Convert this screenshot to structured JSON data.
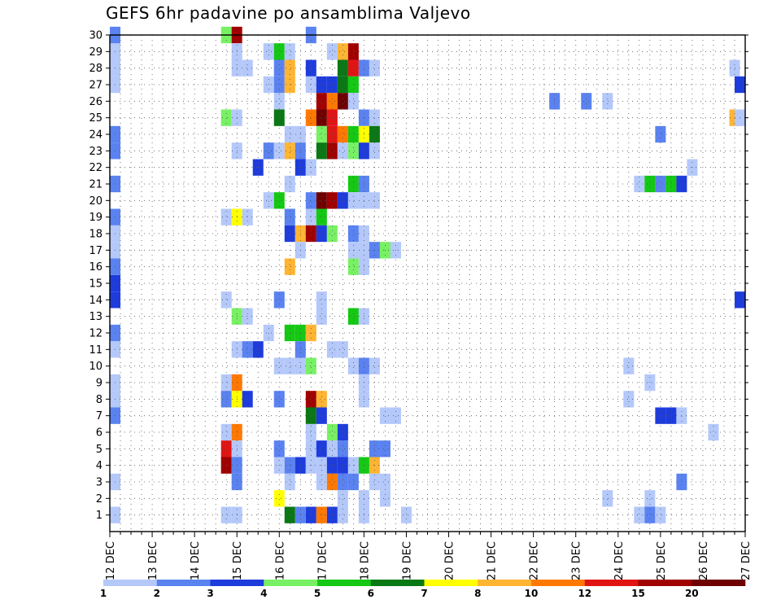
{
  "chart_data": {
    "type": "heatmap",
    "title": "GEFS 6hr padavine po ansamblima Valjevo",
    "xlabel": "",
    "ylabel": "",
    "x_ticks": [
      "12 DEC",
      "13 DEC",
      "14 DEC",
      "15 DEC",
      "16 DEC",
      "17 DEC",
      "18 DEC",
      "19 DEC",
      "20 DEC",
      "21 DEC",
      "22 DEC",
      "23 DEC",
      "24 DEC",
      "25 DEC",
      "26 DEC",
      "27 DEC"
    ],
    "xlim_days": [
      12,
      27
    ],
    "y_ticks": [
      1,
      2,
      3,
      4,
      5,
      6,
      7,
      8,
      9,
      10,
      11,
      12,
      13,
      14,
      15,
      16,
      17,
      18,
      19,
      20,
      21,
      22,
      23,
      24,
      25,
      26,
      27,
      28,
      29,
      30
    ],
    "ylim": [
      0,
      30
    ],
    "grid": true,
    "step_hours": 6,
    "colorbar": {
      "placement": "bottom",
      "colors": [
        "#b4c8fa",
        "#5a82f0",
        "#1e3cdc",
        "#78f064",
        "#14c814",
        "#0a7814",
        "#ffff00",
        "#ffb432",
        "#ff7800",
        "#e11414",
        "#a00000",
        "#6e0000"
      ],
      "tick_labels": [
        "1",
        "2",
        "3",
        "4",
        "5",
        "6",
        "7",
        "8",
        "10",
        "12",
        "15",
        "20"
      ]
    },
    "cells": [
      {
        "day": 12.0,
        "member": 1,
        "level": 1
      },
      {
        "day": 12.0,
        "member": 3,
        "level": 1
      },
      {
        "day": 12.0,
        "member": 7,
        "level": 2
      },
      {
        "day": 12.0,
        "member": 8,
        "level": 1
      },
      {
        "day": 12.0,
        "member": 9,
        "level": 1
      },
      {
        "day": 12.0,
        "member": 11,
        "level": 1
      },
      {
        "day": 12.0,
        "member": 12,
        "level": 2
      },
      {
        "day": 12.0,
        "member": 14,
        "level": 3
      },
      {
        "day": 12.0,
        "member": 15,
        "level": 3
      },
      {
        "day": 12.0,
        "member": 16,
        "level": 2
      },
      {
        "day": 12.0,
        "member": 17,
        "level": 1
      },
      {
        "day": 12.0,
        "member": 18,
        "level": 1
      },
      {
        "day": 12.0,
        "member": 19,
        "level": 2
      },
      {
        "day": 12.0,
        "member": 21,
        "level": 2
      },
      {
        "day": 12.0,
        "member": 23,
        "level": 2
      },
      {
        "day": 12.0,
        "member": 24,
        "level": 2
      },
      {
        "day": 12.0,
        "member": 27,
        "level": 1
      },
      {
        "day": 12.0,
        "member": 28,
        "level": 1
      },
      {
        "day": 12.0,
        "member": 29,
        "level": 1
      },
      {
        "day": 12.0,
        "member": 30,
        "level": 2
      },
      {
        "day": 14.75,
        "member": 30,
        "level": 4
      },
      {
        "day": 15.0,
        "member": 30,
        "level": 11
      },
      {
        "day": 15.0,
        "member": 29,
        "level": 1
      },
      {
        "day": 15.0,
        "member": 28,
        "level": 1
      },
      {
        "day": 15.25,
        "member": 28,
        "level": 1
      },
      {
        "day": 14.75,
        "member": 25,
        "level": 4
      },
      {
        "day": 15.0,
        "member": 25,
        "level": 1
      },
      {
        "day": 15.0,
        "member": 23,
        "level": 1
      },
      {
        "day": 15.5,
        "member": 22,
        "level": 3
      },
      {
        "day": 14.75,
        "member": 19,
        "level": 1
      },
      {
        "day": 15.0,
        "member": 19,
        "level": 7
      },
      {
        "day": 15.25,
        "member": 19,
        "level": 1
      },
      {
        "day": 14.75,
        "member": 14,
        "level": 1
      },
      {
        "day": 15.0,
        "member": 13,
        "level": 4
      },
      {
        "day": 15.25,
        "member": 13,
        "level": 1
      },
      {
        "day": 15.0,
        "member": 11,
        "level": 1
      },
      {
        "day": 15.25,
        "member": 11,
        "level": 2
      },
      {
        "day": 15.5,
        "member": 11,
        "level": 3
      },
      {
        "day": 14.75,
        "member": 9,
        "level": 1
      },
      {
        "day": 15.0,
        "member": 9,
        "level": 9
      },
      {
        "day": 14.75,
        "member": 8,
        "level": 2
      },
      {
        "day": 15.0,
        "member": 8,
        "level": 7
      },
      {
        "day": 15.25,
        "member": 8,
        "level": 3
      },
      {
        "day": 14.75,
        "member": 6,
        "level": 1
      },
      {
        "day": 15.0,
        "member": 6,
        "level": 9
      },
      {
        "day": 14.75,
        "member": 5,
        "level": 10
      },
      {
        "day": 15.0,
        "member": 5,
        "level": 1
      },
      {
        "day": 14.75,
        "member": 4,
        "level": 11
      },
      {
        "day": 15.0,
        "member": 4,
        "level": 2
      },
      {
        "day": 15.0,
        "member": 3,
        "level": 2
      },
      {
        "day": 14.75,
        "member": 1,
        "level": 1
      },
      {
        "day": 15.0,
        "member": 1,
        "level": 1
      },
      {
        "day": 15.75,
        "member": 29,
        "level": 1
      },
      {
        "day": 16.0,
        "member": 29,
        "level": 5
      },
      {
        "day": 16.25,
        "member": 29,
        "level": 1
      },
      {
        "day": 16.0,
        "member": 28,
        "level": 2
      },
      {
        "day": 16.25,
        "member": 28,
        "level": 8
      },
      {
        "day": 16.75,
        "member": 28,
        "level": 3
      },
      {
        "day": 15.75,
        "member": 27,
        "level": 1
      },
      {
        "day": 16.0,
        "member": 27,
        "level": 2
      },
      {
        "day": 16.25,
        "member": 27,
        "level": 8
      },
      {
        "day": 16.75,
        "member": 27,
        "level": 1
      },
      {
        "day": 16.0,
        "member": 26,
        "level": 1
      },
      {
        "day": 16.0,
        "member": 25,
        "level": 6
      },
      {
        "day": 16.75,
        "member": 25,
        "level": 9
      },
      {
        "day": 16.25,
        "member": 24,
        "level": 1
      },
      {
        "day": 16.5,
        "member": 24,
        "level": 1
      },
      {
        "day": 15.75,
        "member": 23,
        "level": 2
      },
      {
        "day": 16.0,
        "member": 23,
        "level": 1
      },
      {
        "day": 16.25,
        "member": 23,
        "level": 8
      },
      {
        "day": 16.5,
        "member": 23,
        "level": 2
      },
      {
        "day": 16.5,
        "member": 22,
        "level": 3
      },
      {
        "day": 16.75,
        "member": 22,
        "level": 1
      },
      {
        "day": 16.25,
        "member": 21,
        "level": 1
      },
      {
        "day": 15.75,
        "member": 20,
        "level": 1
      },
      {
        "day": 16.0,
        "member": 20,
        "level": 5
      },
      {
        "day": 16.75,
        "member": 20,
        "level": 2
      },
      {
        "day": 16.25,
        "member": 19,
        "level": 2
      },
      {
        "day": 16.75,
        "member": 19,
        "level": 1
      },
      {
        "day": 16.25,
        "member": 18,
        "level": 3
      },
      {
        "day": 16.5,
        "member": 18,
        "level": 8
      },
      {
        "day": 16.75,
        "member": 18,
        "level": 11
      },
      {
        "day": 16.5,
        "member": 17,
        "level": 1
      },
      {
        "day": 16.25,
        "member": 16,
        "level": 8
      },
      {
        "day": 16.0,
        "member": 14,
        "level": 2
      },
      {
        "day": 15.75,
        "member": 12,
        "level": 1
      },
      {
        "day": 16.25,
        "member": 12,
        "level": 5
      },
      {
        "day": 16.5,
        "member": 12,
        "level": 5
      },
      {
        "day": 16.5,
        "member": 11,
        "level": 2
      },
      {
        "day": 16.0,
        "member": 10,
        "level": 1
      },
      {
        "day": 16.25,
        "member": 10,
        "level": 1
      },
      {
        "day": 16.5,
        "member": 10,
        "level": 1
      },
      {
        "day": 16.75,
        "member": 10,
        "level": 4
      },
      {
        "day": 16.0,
        "member": 8,
        "level": 2
      },
      {
        "day": 16.75,
        "member": 6,
        "level": 1
      },
      {
        "day": 16.0,
        "member": 5,
        "level": 2
      },
      {
        "day": 16.75,
        "member": 5,
        "level": 1
      },
      {
        "day": 16.0,
        "member": 4,
        "level": 1
      },
      {
        "day": 16.25,
        "member": 4,
        "level": 2
      },
      {
        "day": 16.5,
        "member": 4,
        "level": 3
      },
      {
        "day": 16.75,
        "member": 4,
        "level": 1
      },
      {
        "day": 16.25,
        "member": 3,
        "level": 1
      },
      {
        "day": 16.0,
        "member": 2,
        "level": 7
      },
      {
        "day": 16.25,
        "member": 1,
        "level": 6
      },
      {
        "day": 16.75,
        "member": 1,
        "level": 3
      },
      {
        "day": 16.75,
        "member": 30,
        "level": 2
      },
      {
        "day": 17.25,
        "member": 29,
        "level": 1
      },
      {
        "day": 17.5,
        "member": 29,
        "level": 8
      },
      {
        "day": 17.75,
        "member": 29,
        "level": 11
      },
      {
        "day": 17.5,
        "member": 28,
        "level": 6
      },
      {
        "day": 17.75,
        "member": 28,
        "level": 10
      },
      {
        "day": 18.0,
        "member": 28,
        "level": 2
      },
      {
        "day": 18.25,
        "member": 28,
        "level": 1
      },
      {
        "day": 17.0,
        "member": 27,
        "level": 3
      },
      {
        "day": 17.25,
        "member": 27,
        "level": 3
      },
      {
        "day": 17.5,
        "member": 27,
        "level": 6
      },
      {
        "day": 17.75,
        "member": 27,
        "level": 5
      },
      {
        "day": 17.0,
        "member": 26,
        "level": 11
      },
      {
        "day": 17.25,
        "member": 26,
        "level": 9
      },
      {
        "day": 17.5,
        "member": 26,
        "level": 12
      },
      {
        "day": 17.75,
        "member": 26,
        "level": 1
      },
      {
        "day": 17.0,
        "member": 25,
        "level": 12
      },
      {
        "day": 17.25,
        "member": 25,
        "level": 10
      },
      {
        "day": 18.0,
        "member": 25,
        "level": 2
      },
      {
        "day": 18.25,
        "member": 25,
        "level": 1
      },
      {
        "day": 17.0,
        "member": 24,
        "level": 4
      },
      {
        "day": 17.25,
        "member": 24,
        "level": 10
      },
      {
        "day": 17.5,
        "member": 24,
        "level": 9
      },
      {
        "day": 17.75,
        "member": 24,
        "level": 5
      },
      {
        "day": 18.0,
        "member": 24,
        "level": 7
      },
      {
        "day": 18.25,
        "member": 24,
        "level": 6
      },
      {
        "day": 17.0,
        "member": 23,
        "level": 6
      },
      {
        "day": 17.25,
        "member": 23,
        "level": 11
      },
      {
        "day": 17.5,
        "member": 23,
        "level": 1
      },
      {
        "day": 17.75,
        "member": 23,
        "level": 4
      },
      {
        "day": 18.0,
        "member": 23,
        "level": 3
      },
      {
        "day": 18.25,
        "member": 23,
        "level": 1
      },
      {
        "day": 17.75,
        "member": 21,
        "level": 5
      },
      {
        "day": 18.0,
        "member": 21,
        "level": 2
      },
      {
        "day": 17.0,
        "member": 20,
        "level": 12
      },
      {
        "day": 17.25,
        "member": 20,
        "level": 11
      },
      {
        "day": 17.5,
        "member": 20,
        "level": 3
      },
      {
        "day": 17.75,
        "member": 20,
        "level": 1
      },
      {
        "day": 18.0,
        "member": 20,
        "level": 1
      },
      {
        "day": 18.25,
        "member": 20,
        "level": 1
      },
      {
        "day": 17.0,
        "member": 19,
        "level": 5
      },
      {
        "day": 17.0,
        "member": 18,
        "level": 3
      },
      {
        "day": 17.25,
        "member": 18,
        "level": 4
      },
      {
        "day": 17.75,
        "member": 18,
        "level": 2
      },
      {
        "day": 18.0,
        "member": 18,
        "level": 1
      },
      {
        "day": 17.75,
        "member": 17,
        "level": 1
      },
      {
        "day": 18.0,
        "member": 17,
        "level": 1
      },
      {
        "day": 18.25,
        "member": 17,
        "level": 2
      },
      {
        "day": 18.5,
        "member": 17,
        "level": 4
      },
      {
        "day": 18.75,
        "member": 17,
        "level": 1
      },
      {
        "day": 17.75,
        "member": 16,
        "level": 4
      },
      {
        "day": 18.0,
        "member": 16,
        "level": 1
      },
      {
        "day": 17.0,
        "member": 14,
        "level": 1
      },
      {
        "day": 17.0,
        "member": 13,
        "level": 1
      },
      {
        "day": 17.75,
        "member": 13,
        "level": 5
      },
      {
        "day": 18.0,
        "member": 13,
        "level": 1
      },
      {
        "day": 16.75,
        "member": 12,
        "level": 8
      },
      {
        "day": 17.25,
        "member": 11,
        "level": 1
      },
      {
        "day": 17.5,
        "member": 11,
        "level": 1
      },
      {
        "day": 17.75,
        "member": 10,
        "level": 1
      },
      {
        "day": 18.0,
        "member": 10,
        "level": 2
      },
      {
        "day": 18.25,
        "member": 10,
        "level": 1
      },
      {
        "day": 18.0,
        "member": 9,
        "level": 1
      },
      {
        "day": 16.75,
        "member": 8,
        "level": 11
      },
      {
        "day": 17.0,
        "member": 8,
        "level": 8
      },
      {
        "day": 18.0,
        "member": 8,
        "level": 1
      },
      {
        "day": 16.75,
        "member": 7,
        "level": 6
      },
      {
        "day": 17.0,
        "member": 7,
        "level": 3
      },
      {
        "day": 18.5,
        "member": 7,
        "level": 1
      },
      {
        "day": 18.75,
        "member": 7,
        "level": 1
      },
      {
        "day": 17.25,
        "member": 6,
        "level": 4
      },
      {
        "day": 17.5,
        "member": 6,
        "level": 3
      },
      {
        "day": 17.0,
        "member": 5,
        "level": 3
      },
      {
        "day": 17.25,
        "member": 5,
        "level": 1
      },
      {
        "day": 17.5,
        "member": 5,
        "level": 2
      },
      {
        "day": 18.25,
        "member": 5,
        "level": 2
      },
      {
        "day": 18.5,
        "member": 5,
        "level": 2
      },
      {
        "day": 17.0,
        "member": 4,
        "level": 1
      },
      {
        "day": 17.25,
        "member": 4,
        "level": 3
      },
      {
        "day": 17.5,
        "member": 4,
        "level": 3
      },
      {
        "day": 17.75,
        "member": 4,
        "level": 1
      },
      {
        "day": 18.0,
        "member": 4,
        "level": 5
      },
      {
        "day": 18.25,
        "member": 4,
        "level": 8
      },
      {
        "day": 17.0,
        "member": 3,
        "level": 1
      },
      {
        "day": 17.25,
        "member": 3,
        "level": 9
      },
      {
        "day": 17.5,
        "member": 3,
        "level": 2
      },
      {
        "day": 17.75,
        "member": 3,
        "level": 2
      },
      {
        "day": 18.25,
        "member": 3,
        "level": 1
      },
      {
        "day": 18.5,
        "member": 3,
        "level": 1
      },
      {
        "day": 17.5,
        "member": 2,
        "level": 1
      },
      {
        "day": 18.0,
        "member": 2,
        "level": 1
      },
      {
        "day": 18.5,
        "member": 2,
        "level": 1
      },
      {
        "day": 16.5,
        "member": 1,
        "level": 2
      },
      {
        "day": 17.0,
        "member": 1,
        "level": 9
      },
      {
        "day": 17.25,
        "member": 1,
        "level": 3
      },
      {
        "day": 17.5,
        "member": 1,
        "level": 1
      },
      {
        "day": 18.0,
        "member": 1,
        "level": 1
      },
      {
        "day": 19.0,
        "member": 1,
        "level": 1
      },
      {
        "day": 22.5,
        "member": 26,
        "level": 2
      },
      {
        "day": 23.25,
        "member": 26,
        "level": 2
      },
      {
        "day": 23.75,
        "member": 26,
        "level": 1
      },
      {
        "day": 24.25,
        "member": 10,
        "level": 1
      },
      {
        "day": 24.25,
        "member": 8,
        "level": 1
      },
      {
        "day": 23.75,
        "member": 2,
        "level": 1
      },
      {
        "day": 24.5,
        "member": 21,
        "level": 1
      },
      {
        "day": 24.75,
        "member": 21,
        "level": 5
      },
      {
        "day": 25.0,
        "member": 21,
        "level": 2
      },
      {
        "day": 25.25,
        "member": 21,
        "level": 5
      },
      {
        "day": 25.5,
        "member": 21,
        "level": 3
      },
      {
        "day": 25.0,
        "member": 24,
        "level": 2
      },
      {
        "day": 25.75,
        "member": 22,
        "level": 1
      },
      {
        "day": 24.75,
        "member": 9,
        "level": 1
      },
      {
        "day": 25.0,
        "member": 7,
        "level": 3
      },
      {
        "day": 25.25,
        "member": 7,
        "level": 3
      },
      {
        "day": 25.5,
        "member": 7,
        "level": 1
      },
      {
        "day": 25.5,
        "member": 3,
        "level": 2
      },
      {
        "day": 24.75,
        "member": 2,
        "level": 1
      },
      {
        "day": 24.5,
        "member": 1,
        "level": 1
      },
      {
        "day": 24.75,
        "member": 1,
        "level": 2
      },
      {
        "day": 25.0,
        "member": 1,
        "level": 1
      },
      {
        "day": 26.25,
        "member": 6,
        "level": 1
      },
      {
        "day": 26.75,
        "member": 28,
        "level": 1
      },
      {
        "day": 27.0,
        "member": 27,
        "level": 3
      },
      {
        "day": 26.75,
        "member": 25,
        "level": 8
      },
      {
        "day": 27.0,
        "member": 25,
        "level": 1
      },
      {
        "day": 27.0,
        "member": 14,
        "level": 3
      }
    ]
  }
}
